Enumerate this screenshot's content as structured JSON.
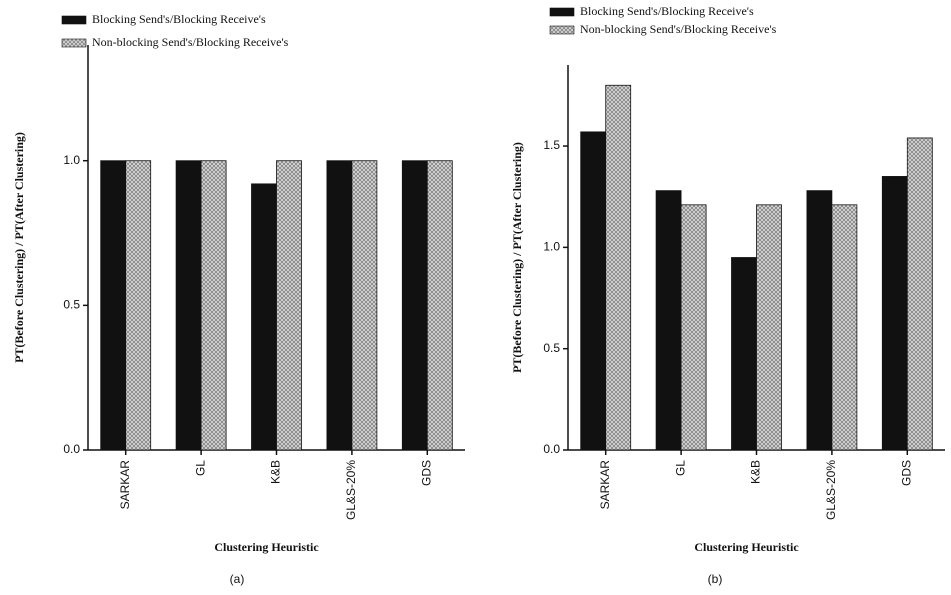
{
  "chart_data": [
    {
      "type": "bar",
      "x_label": "Clustering Heuristic",
      "y_label": "PT(Before Clustering) / PT(After Clustering)",
      "caption": "(a)",
      "categories": [
        "SARKAR",
        "GL",
        "K&B",
        "GL&S-20%",
        "GDS"
      ],
      "series": [
        {
          "name": "Blocking Send's/Blocking Receive's",
          "color": "#111111",
          "hatch": false,
          "values": [
            1.0,
            1.0,
            0.92,
            1.0,
            1.0
          ]
        },
        {
          "name": "Non-blocking Send's/Blocking Receive's",
          "color": "#bdbdbd",
          "hatch": true,
          "values": [
            1.0,
            1.0,
            1.0,
            1.0,
            1.0
          ]
        }
      ],
      "ylim": [
        0,
        1.4
      ],
      "yticks": [
        {
          "value": 0,
          "label": "0.0"
        },
        {
          "value": 0.5,
          "label": "0.5"
        },
        {
          "value": 1,
          "label": "1.0"
        }
      ]
    },
    {
      "type": "bar",
      "x_label": "Clustering Heuristic",
      "y_label": "PT(Before Clustering) / PT(After Clustering)",
      "caption": "(b)",
      "categories": [
        "SARKAR",
        "GL",
        "K&B",
        "GL&S-20%",
        "GDS"
      ],
      "series": [
        {
          "name": "Blocking Send's/Blocking Receive's",
          "color": "#111111",
          "hatch": false,
          "values": [
            1.57,
            1.28,
            0.95,
            1.28,
            1.35
          ]
        },
        {
          "name": "Non-blocking Send's/Blocking Receive's",
          "color": "#bdbdbd",
          "hatch": true,
          "values": [
            1.8,
            1.21,
            1.21,
            1.21,
            1.54
          ]
        }
      ],
      "ylim": [
        0,
        1.9
      ],
      "yticks": [
        {
          "value": 0,
          "label": "0.0"
        },
        {
          "value": 0.5,
          "label": "0.5"
        },
        {
          "value": 1,
          "label": "1.0"
        },
        {
          "value": 1.5,
          "label": "1.5"
        }
      ]
    }
  ]
}
